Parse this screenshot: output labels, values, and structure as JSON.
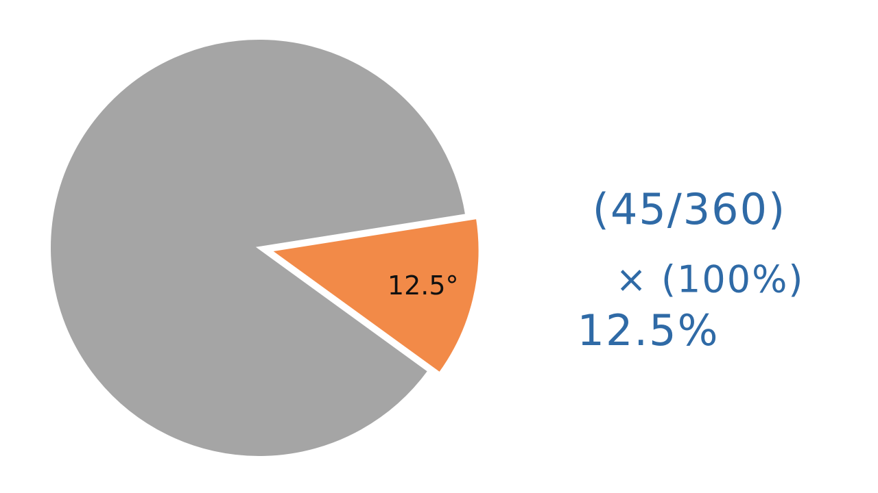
{
  "chart_data": {
    "type": "pie",
    "categories": [
      null,
      null
    ],
    "values": [
      12.5,
      87.5
    ],
    "value_labels": [
      "12.5°",
      null
    ],
    "colors": [
      "#f28a48",
      "#a5a5a5"
    ],
    "explode": [
      true,
      false
    ],
    "annotations": [
      "(45/360)",
      "× (100%)",
      "12.5%"
    ]
  }
}
